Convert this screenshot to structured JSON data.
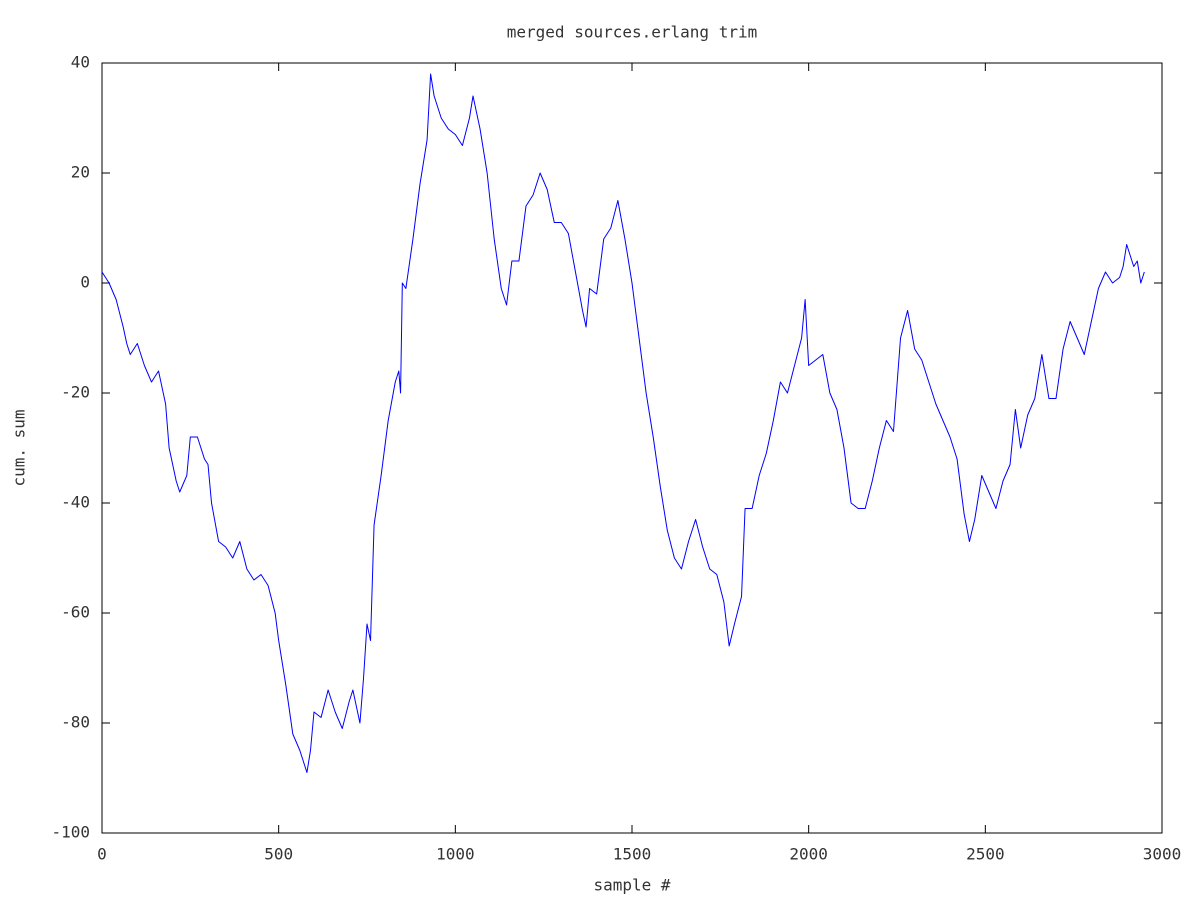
{
  "chart_data": {
    "type": "line",
    "title": "merged sources.erlang trim",
    "xlabel": "sample #",
    "ylabel": "cum. sum",
    "color": "#0000ff",
    "xlim": [
      0,
      3000
    ],
    "xticks": [
      0,
      500,
      1000,
      1500,
      2000,
      2500,
      3000
    ],
    "ylim": [
      -100,
      40
    ],
    "yticks": [
      -100,
      -80,
      -60,
      -40,
      -20,
      0,
      20,
      40
    ],
    "x": [
      0,
      20,
      40,
      60,
      70,
      80,
      100,
      120,
      140,
      160,
      180,
      190,
      210,
      220,
      240,
      250,
      270,
      290,
      300,
      310,
      330,
      350,
      370,
      390,
      410,
      430,
      450,
      470,
      490,
      500,
      520,
      540,
      560,
      580,
      590,
      600,
      620,
      640,
      660,
      680,
      700,
      710,
      730,
      740,
      750,
      760,
      770,
      790,
      810,
      830,
      840,
      845,
      850,
      860,
      880,
      900,
      920,
      930,
      940,
      960,
      980,
      1000,
      1020,
      1040,
      1050,
      1070,
      1090,
      1110,
      1130,
      1145,
      1160,
      1180,
      1200,
      1220,
      1240,
      1260,
      1280,
      1300,
      1320,
      1340,
      1360,
      1370,
      1380,
      1400,
      1420,
      1440,
      1460,
      1480,
      1500,
      1520,
      1540,
      1560,
      1580,
      1600,
      1620,
      1640,
      1660,
      1680,
      1700,
      1720,
      1740,
      1760,
      1775,
      1790,
      1810,
      1820,
      1840,
      1860,
      1880,
      1900,
      1920,
      1940,
      1960,
      1980,
      1990,
      2000,
      2040,
      2060,
      2080,
      2100,
      2120,
      2140,
      2160,
      2180,
      2200,
      2220,
      2240,
      2260,
      2280,
      2300,
      2320,
      2340,
      2360,
      2380,
      2400,
      2420,
      2440,
      2455,
      2470,
      2490,
      2510,
      2530,
      2550,
      2570,
      2585,
      2600,
      2620,
      2640,
      2660,
      2680,
      2700,
      2720,
      2740,
      2760,
      2780,
      2800,
      2810,
      2820,
      2840,
      2860,
      2880,
      2890,
      2900,
      2910,
      2920,
      2930,
      2940,
      2950
    ],
    "values": [
      2,
      0,
      -3,
      -8,
      -11,
      -13,
      -11,
      -15,
      -18,
      -16,
      -22,
      -30,
      -36,
      -38,
      -35,
      -28,
      -28,
      -32,
      -33,
      -40,
      -47,
      -48,
      -50,
      -47,
      -52,
      -54,
      -53,
      -55,
      -60,
      -65,
      -73,
      -82,
      -85,
      -89,
      -85,
      -78,
      -79,
      -74,
      -78,
      -81,
      -76,
      -74,
      -80,
      -72,
      -62,
      -65,
      -44,
      -35,
      -25,
      -18,
      -16,
      -20,
      0,
      -1,
      8,
      18,
      26,
      38,
      34,
      30,
      28,
      27,
      25,
      30,
      34,
      28,
      20,
      8,
      -1,
      -4,
      4,
      4,
      14,
      16,
      20,
      17,
      11,
      11,
      9,
      2,
      -5,
      -8,
      -1,
      -2,
      8,
      10,
      15,
      8,
      0,
      -10,
      -20,
      -28,
      -37,
      -45,
      -50,
      -52,
      -47,
      -43,
      -48,
      -52,
      -53,
      -58,
      -66,
      -62,
      -57,
      -41,
      -41,
      -35,
      -31,
      -25,
      -18,
      -20,
      -15,
      -10,
      -3,
      -15,
      -13,
      -20,
      -23,
      -30,
      -40,
      -41,
      -41,
      -36,
      -30,
      -25,
      -27,
      -10,
      -5,
      -12,
      -14,
      -18,
      -22,
      -25,
      -28,
      -32,
      -42,
      -47,
      -43,
      -35,
      -38,
      -41,
      -36,
      -33,
      -23,
      -30,
      -24,
      -21,
      -13,
      -21,
      -21,
      -12,
      -7,
      -10,
      -13,
      -7,
      -4,
      -1,
      2,
      0,
      1,
      3,
      7,
      5,
      3,
      4,
      0,
      2
    ]
  }
}
